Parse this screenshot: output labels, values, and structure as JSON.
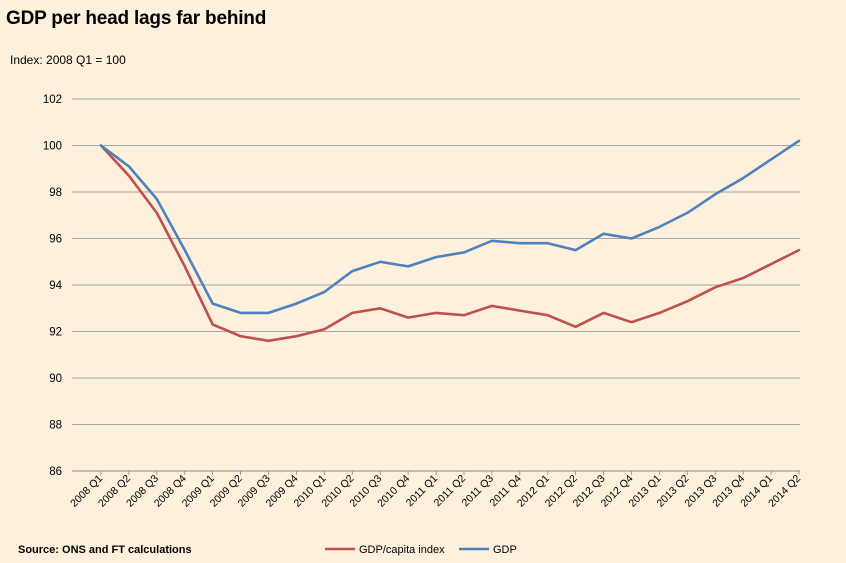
{
  "title": "GDP per head lags far behind",
  "subtitle": "Index: 2008 Q1 = 100",
  "source": "Source: ONS and FT calculations",
  "chart_data": {
    "type": "line",
    "title": "GDP per head lags far behind",
    "ylabel": "Index: 2008 Q1 = 100",
    "ylim": [
      86,
      102
    ],
    "yticks": [
      86,
      88,
      90,
      92,
      94,
      96,
      98,
      100,
      102
    ],
    "grid": true,
    "legend_position": "bottom-right",
    "categories": [
      "2008 Q1",
      "2008 Q2",
      "2008 Q3",
      "2008 Q4",
      "2009 Q1",
      "2009 Q2",
      "2009 Q3",
      "2009 Q4",
      "2010 Q1",
      "2010 Q2",
      "2010 Q3",
      "2010 Q4",
      "2011 Q1",
      "2011 Q2",
      "2011 Q3",
      "2011 Q4",
      "2012 Q1",
      "2012 Q2",
      "2012 Q3",
      "2012 Q4",
      "2013 Q1",
      "2013 Q2",
      "2013 Q3",
      "2013 Q4",
      "2014 Q1",
      "2014 Q2"
    ],
    "series": [
      {
        "name": "GDP/capita index",
        "color": "#c0504d",
        "values": [
          100.0,
          98.7,
          97.1,
          94.8,
          92.3,
          91.8,
          91.6,
          91.8,
          92.1,
          92.8,
          93.0,
          92.6,
          92.8,
          92.7,
          93.1,
          92.9,
          92.7,
          92.2,
          92.8,
          92.4,
          92.8,
          93.3,
          93.9,
          94.3,
          94.9,
          95.5
        ]
      },
      {
        "name": "GDP",
        "color": "#4f81bd",
        "values": [
          100.0,
          99.1,
          97.7,
          95.5,
          93.2,
          92.8,
          92.8,
          93.2,
          93.7,
          94.6,
          95.0,
          94.8,
          95.2,
          95.4,
          95.9,
          95.8,
          95.8,
          95.5,
          96.2,
          96.0,
          96.5,
          97.1,
          97.9,
          98.6,
          99.4,
          100.2
        ]
      }
    ]
  }
}
